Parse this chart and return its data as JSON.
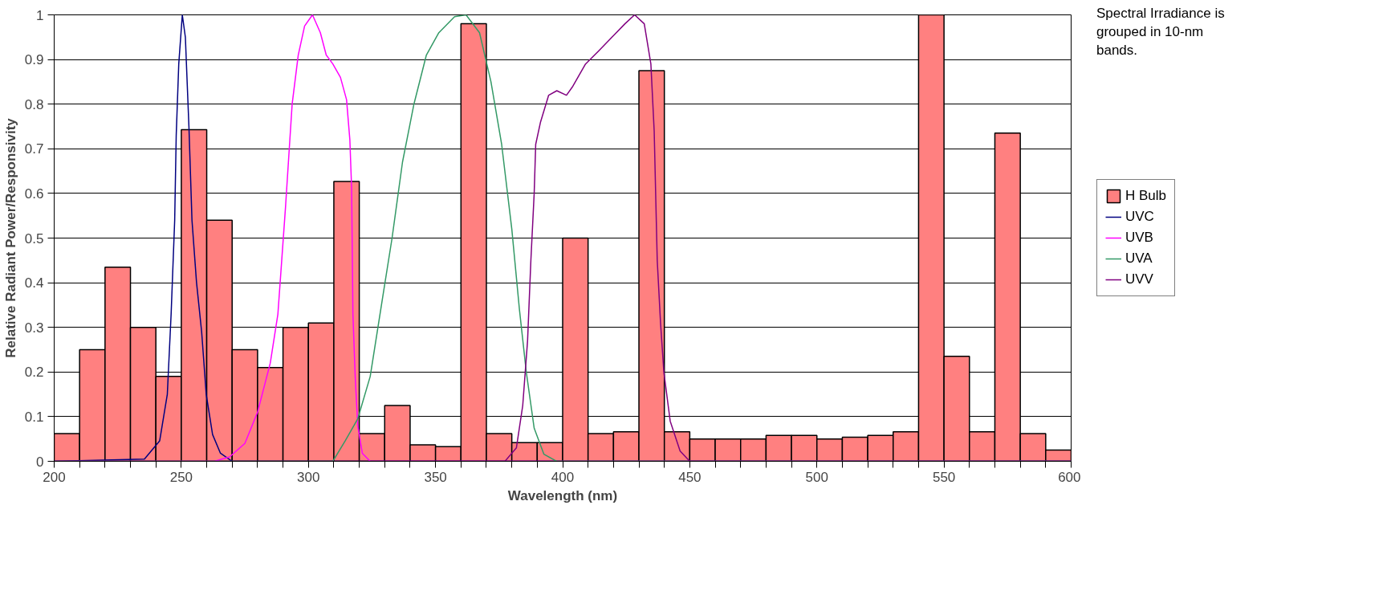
{
  "chart_data": {
    "type": "histogram",
    "xlabel": "Wavelength (nm)",
    "ylabel": "Relative Radiant Power/Responsivity",
    "xlim": [
      200,
      600
    ],
    "ylim": [
      0,
      1
    ],
    "xticks": [
      200,
      {
        "value": 210,
        "label": null
      },
      {
        "value": 220,
        "label": null
      },
      {
        "value": 230,
        "label": null
      },
      {
        "value": 240,
        "label": null
      },
      250,
      {
        "value": 260,
        "label": null
      },
      {
        "value": 270,
        "label": null
      },
      {
        "value": 280,
        "label": null
      },
      {
        "value": 290,
        "label": null
      },
      300,
      {
        "value": 310,
        "label": null
      },
      {
        "value": 320,
        "label": null
      },
      {
        "value": 330,
        "label": null
      },
      {
        "value": 340,
        "label": null
      },
      350,
      {
        "value": 360,
        "label": null
      },
      {
        "value": 370,
        "label": null
      },
      {
        "value": 380,
        "label": null
      },
      {
        "value": 390,
        "label": null
      },
      400,
      {
        "value": 410,
        "label": null
      },
      {
        "value": 420,
        "label": null
      },
      {
        "value": 430,
        "label": null
      },
      {
        "value": 440,
        "label": null
      },
      450,
      {
        "value": 460,
        "label": null
      },
      {
        "value": 470,
        "label": null
      },
      {
        "value": 480,
        "label": null
      },
      {
        "value": 490,
        "label": null
      },
      500,
      {
        "value": 510,
        "label": null
      },
      {
        "value": 520,
        "label": null
      },
      {
        "value": 530,
        "label": null
      },
      {
        "value": 540,
        "label": null
      },
      550,
      {
        "value": 560,
        "label": null
      },
      {
        "value": 570,
        "label": null
      },
      {
        "value": 580,
        "label": null
      },
      {
        "value": 590,
        "label": null
      },
      600
    ],
    "yticks": [
      0,
      0.1,
      0.2,
      0.3,
      0.4,
      0.5,
      0.6,
      0.7,
      0.8,
      0.9,
      1
    ],
    "grid": "y",
    "legend": "right",
    "marker": "none",
    "line_style": "solid",
    "annotations": [
      "Spectral Irradiance is grouped in 10-nm bands."
    ],
    "series": [
      {
        "name": "H Bulb",
        "color": "#ff8080",
        "bins": [
          200,
          210,
          220,
          230,
          240,
          250,
          260,
          270,
          280,
          290,
          300,
          310,
          320,
          330,
          340,
          350,
          360,
          370,
          380,
          390,
          400,
          410,
          420,
          430,
          440,
          450,
          460,
          470,
          480,
          490,
          500,
          510,
          520,
          530,
          540,
          550,
          560,
          570,
          580,
          590,
          600
        ],
        "values": [
          0.062,
          0.25,
          0.435,
          0.3,
          0.19,
          0.743,
          0.54,
          0.25,
          0.21,
          0.3,
          0.31,
          0.627,
          0.062,
          0.125,
          0.037,
          0.033,
          0.98,
          0.062,
          0.042,
          0.042,
          0.5,
          0.062,
          0.066,
          0.875,
          0.066,
          0.05,
          0.05,
          0.05,
          0.058,
          0.058,
          0.05,
          0.054,
          0.058,
          0.066,
          1.0,
          0.235,
          0.066,
          0.735,
          0.062,
          0.025
        ]
      },
      {
        "name": "UVC",
        "type": "line",
        "color": "#000080",
        "x": [
          200,
          235.5,
          241.5,
          244.5,
          246,
          247.4,
          248,
          249,
          250.4,
          251.6,
          253,
          254.2,
          256,
          258,
          259.8,
          262.3,
          265.4,
          270,
          600
        ],
        "values": [
          0,
          0.005,
          0.046,
          0.15,
          0.33,
          0.54,
          0.73,
          0.89,
          1.0,
          0.95,
          0.75,
          0.54,
          0.4,
          0.29,
          0.15,
          0.06,
          0.018,
          0,
          0
        ]
      },
      {
        "name": "UVB",
        "type": "line",
        "color": "#ff00ff",
        "x": [
          200,
          263,
          269,
          275,
          280,
          285,
          288,
          291,
          293.6,
          296,
          298.5,
          301.6,
          304.7,
          307,
          309.6,
          312.6,
          315,
          316.3,
          317,
          317.5,
          318.4,
          319.4,
          321.2,
          324.3,
          600
        ],
        "values": [
          0,
          0,
          0.01,
          0.04,
          0.11,
          0.22,
          0.33,
          0.57,
          0.8,
          0.91,
          0.975,
          1.0,
          0.96,
          0.91,
          0.89,
          0.86,
          0.81,
          0.72,
          0.61,
          0.33,
          0.19,
          0.08,
          0.018,
          0,
          0
        ]
      },
      {
        "name": "UVA",
        "type": "line",
        "color": "#339966",
        "x": [
          200,
          309.6,
          314.5,
          319.4,
          324.3,
          329,
          332.9,
          337,
          341.5,
          346.4,
          351.3,
          357.5,
          362,
          367.3,
          371.8,
          376,
          380,
          383,
          385.7,
          388.8,
          392.6,
          397.6,
          600
        ],
        "values": [
          0,
          0,
          0.046,
          0.095,
          0.19,
          0.36,
          0.5,
          0.67,
          0.8,
          0.91,
          0.96,
          0.996,
          1.0,
          0.96,
          0.85,
          0.71,
          0.52,
          0.34,
          0.2,
          0.074,
          0.016,
          0,
          0
        ]
      },
      {
        "name": "UVV",
        "type": "line",
        "color": "#800080",
        "x": [
          200,
          377.3,
          381.8,
          384.3,
          386.2,
          387.5,
          388.8,
          389.4,
          391.3,
          394.5,
          397.7,
          401.5,
          404,
          409,
          414.3,
          419.4,
          424.5,
          428.3,
          432.1,
          434.7,
          436,
          437.2,
          438.5,
          439.8,
          442.3,
          446.2,
          450,
          600
        ],
        "values": [
          0,
          0,
          0.03,
          0.125,
          0.27,
          0.45,
          0.6,
          0.71,
          0.76,
          0.82,
          0.83,
          0.82,
          0.84,
          0.89,
          0.92,
          0.95,
          0.98,
          1.0,
          0.98,
          0.89,
          0.74,
          0.45,
          0.31,
          0.2,
          0.09,
          0.023,
          0,
          0
        ]
      }
    ]
  }
}
